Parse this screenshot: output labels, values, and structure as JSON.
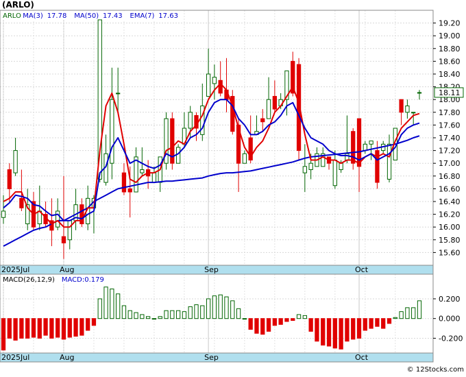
{
  "chart_data": {
    "type": "candlestick",
    "title": "(ARLO)",
    "price_panel": {
      "legend": [
        {
          "label": "ARLO",
          "value": "",
          "color": "#006400"
        },
        {
          "label": "MA(3)",
          "value": "17.78",
          "color": "#0000cc"
        },
        {
          "label": "MA(50)",
          "value": "17.43",
          "color": "#0000cc"
        },
        {
          "label": "EMA(7)",
          "value": "17.63",
          "color": "#0000cc"
        }
      ],
      "ylim": [
        15.4,
        19.4
      ],
      "yticks": [
        "15.60",
        "15.80",
        "16.00",
        "16.20",
        "16.40",
        "16.60",
        "16.80",
        "17.00",
        "17.20",
        "17.40",
        "17.60",
        "17.80",
        "18.00",
        "18.20",
        "18.40",
        "18.60",
        "18.80",
        "19.00",
        "19.20"
      ],
      "last_price": "18.11",
      "candles": [
        [
          16.15,
          16.25,
          16.5,
          16.05
        ],
        [
          16.9,
          16.6,
          17.0,
          16.4
        ],
        [
          16.85,
          17.2,
          17.4,
          16.8
        ],
        [
          16.45,
          16.3,
          16.9,
          16.25
        ],
        [
          16.05,
          16.35,
          16.6,
          15.95
        ],
        [
          16.4,
          16.0,
          16.55,
          15.95
        ],
        [
          16.05,
          16.25,
          16.65,
          15.95
        ],
        [
          16.2,
          16.05,
          16.4,
          16.0
        ],
        [
          16.1,
          15.95,
          16.45,
          15.7
        ],
        [
          16.0,
          16.25,
          16.45,
          15.95
        ],
        [
          15.85,
          15.75,
          16.8,
          15.5
        ],
        [
          15.8,
          16.1,
          16.1,
          15.65
        ],
        [
          16.1,
          16.35,
          16.6,
          15.95
        ],
        [
          16.35,
          16.05,
          16.45,
          16.0
        ],
        [
          16.05,
          16.45,
          16.65,
          15.95
        ],
        [
          16.3,
          16.45,
          16.5,
          15.9
        ],
        [
          16.75,
          19.25,
          19.25,
          16.7
        ],
        [
          16.7,
          17.15,
          17.45,
          16.65
        ],
        [
          17.0,
          18.0,
          18.5,
          16.75
        ],
        [
          18.1,
          18.1,
          18.5,
          17.8
        ],
        [
          16.85,
          16.55,
          17.0,
          16.5
        ],
        [
          16.6,
          16.55,
          16.95,
          16.15
        ],
        [
          16.55,
          17.1,
          17.25,
          16.55
        ],
        [
          16.85,
          16.9,
          17.25,
          16.8
        ],
        [
          16.9,
          16.8,
          17.05,
          16.6
        ],
        [
          16.7,
          16.85,
          16.95,
          16.7
        ],
        [
          16.7,
          17.1,
          17.1,
          16.55
        ],
        [
          17.0,
          17.7,
          17.8,
          16.9
        ],
        [
          17.7,
          17.0,
          17.8,
          16.9
        ],
        [
          17.0,
          17.25,
          17.3,
          17.05
        ],
        [
          17.3,
          17.55,
          17.8,
          17.25
        ],
        [
          17.55,
          17.8,
          17.9,
          17.4
        ],
        [
          17.75,
          17.55,
          17.8,
          17.35
        ],
        [
          17.45,
          17.9,
          18.25,
          17.35
        ],
        [
          18.05,
          18.4,
          18.8,
          18.05
        ],
        [
          18.25,
          18.35,
          18.55,
          18.0
        ],
        [
          18.3,
          18.1,
          18.6,
          18.05
        ],
        [
          18.15,
          18.0,
          18.65,
          17.8
        ],
        [
          18.05,
          17.5,
          18.15,
          17.45
        ],
        [
          17.6,
          17.0,
          17.7,
          16.55
        ],
        [
          17.0,
          17.15,
          17.2,
          17.0
        ],
        [
          17.4,
          17.05,
          17.75,
          17.0
        ],
        [
          17.45,
          17.5,
          17.75,
          17.45
        ],
        [
          17.7,
          17.65,
          17.85,
          17.5
        ],
        [
          17.7,
          18.0,
          18.35,
          17.85
        ],
        [
          18.05,
          17.85,
          18.3,
          17.8
        ],
        [
          17.9,
          18.0,
          18.1,
          17.85
        ],
        [
          18.0,
          18.45,
          18.45,
          17.75
        ],
        [
          18.6,
          18.1,
          18.75,
          18.05
        ],
        [
          18.55,
          17.2,
          18.65,
          17.05
        ],
        [
          16.85,
          16.95,
          17.3,
          16.55
        ],
        [
          16.9,
          17.0,
          17.15,
          16.75
        ],
        [
          16.95,
          17.15,
          17.25,
          16.95
        ],
        [
          16.95,
          17.15,
          17.25,
          16.95
        ],
        [
          17.1,
          17.0,
          17.1,
          16.9
        ],
        [
          16.65,
          17.05,
          17.2,
          16.6
        ],
        [
          16.9,
          17.0,
          17.05,
          16.85
        ],
        [
          17.05,
          17.15,
          17.75,
          17.0
        ],
        [
          17.5,
          17.0,
          17.55,
          16.9
        ],
        [
          17.7,
          16.95,
          17.7,
          16.55
        ],
        [
          17.2,
          17.3,
          17.35,
          17.15
        ],
        [
          17.3,
          17.35,
          17.35,
          17.05
        ],
        [
          17.2,
          16.7,
          17.35,
          16.6
        ],
        [
          17.2,
          17.3,
          17.35,
          17.15
        ],
        [
          16.75,
          17.3,
          17.45,
          16.7
        ],
        [
          17.05,
          17.55,
          17.55,
          17.05
        ],
        [
          18.0,
          17.8,
          18.0,
          17.6
        ],
        [
          17.8,
          17.9,
          18.0,
          17.7
        ],
        [
          17.8,
          17.8,
          17.8,
          17.6
        ],
        [
          18.1,
          18.11,
          18.15,
          18.0
        ]
      ],
      "ma3": [
        16.4,
        16.45,
        16.55,
        16.55,
        16.3,
        16.2,
        16.25,
        16.15,
        16.05,
        16.1,
        16.0,
        16.0,
        16.1,
        16.1,
        16.3,
        16.3,
        17.2,
        17.9,
        18.1,
        17.8,
        17.3,
        16.75,
        16.7,
        16.8,
        16.85,
        16.85,
        16.9,
        17.2,
        17.25,
        17.35,
        17.3,
        17.5,
        17.6,
        17.75,
        18.0,
        18.15,
        18.25,
        18.15,
        17.9,
        17.55,
        17.25,
        17.1,
        17.25,
        17.35,
        17.55,
        17.8,
        17.9,
        18.05,
        18.2,
        17.95,
        17.45,
        17.05,
        17.05,
        17.1,
        17.05,
        17.05,
        17.0,
        17.05,
        17.05,
        17.0,
        17.1,
        17.15,
        17.1,
        17.15,
        17.1,
        17.35,
        17.55,
        17.65,
        17.75,
        17.78
      ],
      "ma50": [
        15.7,
        15.75,
        15.8,
        15.85,
        15.9,
        15.95,
        15.98,
        16.0,
        16.05,
        16.1,
        16.1,
        16.15,
        16.2,
        16.25,
        16.3,
        16.4,
        16.45,
        16.5,
        16.55,
        16.6,
        16.62,
        16.64,
        16.66,
        16.68,
        16.7,
        16.7,
        16.71,
        16.72,
        16.72,
        16.73,
        16.74,
        16.75,
        16.76,
        16.77,
        16.8,
        16.82,
        16.84,
        16.85,
        16.85,
        16.86,
        16.87,
        16.88,
        16.9,
        16.92,
        16.94,
        16.96,
        16.98,
        17.0,
        17.02,
        17.05,
        17.08,
        17.1,
        17.11,
        17.12,
        17.13,
        17.14,
        17.15,
        17.16,
        17.17,
        17.18,
        17.2,
        17.22,
        17.24,
        17.26,
        17.28,
        17.3,
        17.33,
        17.36,
        17.4,
        17.43
      ],
      "ema7": [
        16.3,
        16.38,
        16.5,
        16.48,
        16.45,
        16.35,
        16.33,
        16.25,
        16.18,
        16.2,
        16.1,
        16.1,
        16.15,
        16.13,
        16.2,
        16.25,
        16.85,
        16.95,
        17.25,
        17.4,
        17.2,
        17.0,
        17.05,
        17.0,
        16.95,
        16.92,
        16.97,
        17.15,
        17.1,
        17.15,
        17.25,
        17.4,
        17.45,
        17.55,
        17.8,
        17.95,
        18.0,
        18.0,
        17.9,
        17.7,
        17.6,
        17.45,
        17.45,
        17.5,
        17.6,
        17.65,
        17.75,
        17.9,
        17.95,
        17.75,
        17.55,
        17.4,
        17.35,
        17.3,
        17.2,
        17.15,
        17.12,
        17.12,
        17.1,
        17.05,
        17.1,
        17.15,
        17.05,
        17.1,
        17.15,
        17.25,
        17.45,
        17.55,
        17.6,
        17.63
      ]
    },
    "macd_panel": {
      "legend": [
        {
          "label": "MACD(26,12,9)",
          "value": "",
          "color": "#000000"
        },
        {
          "label": "MACD:0.179",
          "value": "",
          "color": "#0000cc"
        }
      ],
      "ylim": [
        -0.35,
        0.45
      ],
      "yticks": [
        "0.200",
        "0.000",
        "-0.200"
      ],
      "histogram": [
        -0.32,
        -0.2,
        -0.22,
        -0.2,
        -0.2,
        -0.19,
        -0.2,
        -0.17,
        -0.2,
        -0.19,
        -0.21,
        -0.19,
        -0.18,
        -0.17,
        -0.12,
        -0.07,
        0.2,
        0.32,
        0.3,
        0.25,
        0.13,
        0.08,
        0.06,
        0.04,
        0.02,
        0.0,
        0.02,
        0.08,
        0.08,
        0.08,
        0.07,
        0.12,
        0.14,
        0.13,
        0.2,
        0.23,
        0.24,
        0.22,
        0.18,
        0.1,
        0.0,
        -0.11,
        -0.15,
        -0.16,
        -0.13,
        -0.07,
        -0.06,
        -0.03,
        -0.02,
        0.04,
        0.03,
        -0.13,
        -0.23,
        -0.27,
        -0.28,
        -0.3,
        -0.31,
        -0.23,
        -0.21,
        -0.2,
        -0.12,
        -0.1,
        -0.08,
        -0.1,
        -0.05,
        0.01,
        0.07,
        0.11,
        0.11,
        0.18
      ]
    },
    "x_labels": [
      {
        "label": "2025Jul",
        "index": 0
      },
      {
        "label": "Aug",
        "index": 10
      },
      {
        "label": "Sep",
        "index": 34
      },
      {
        "label": "Oct",
        "index": 59
      }
    ],
    "watermark": "© 12Stocks.com",
    "colors": {
      "up": "#006400",
      "down": "#e00000",
      "ma": "#0000cc",
      "ema": "#e00000",
      "axis_band": "#b0dfee"
    }
  }
}
